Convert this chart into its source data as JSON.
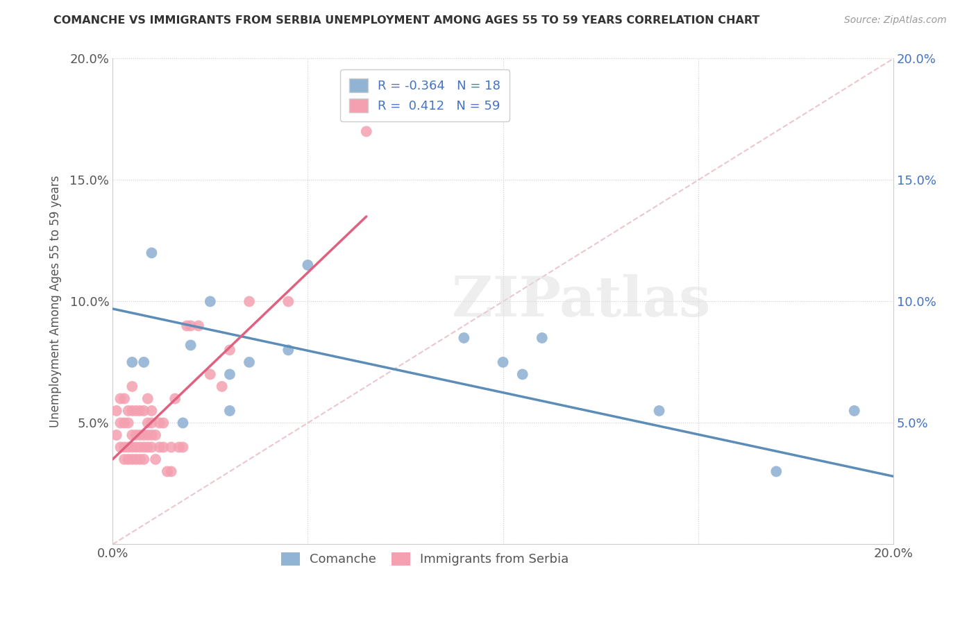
{
  "title": "COMANCHE VS IMMIGRANTS FROM SERBIA UNEMPLOYMENT AMONG AGES 55 TO 59 YEARS CORRELATION CHART",
  "source": "Source: ZipAtlas.com",
  "ylabel": "Unemployment Among Ages 55 to 59 years",
  "xlim": [
    0.0,
    0.2
  ],
  "ylim": [
    0.0,
    0.2
  ],
  "xticks": [
    0.0,
    0.05,
    0.1,
    0.15,
    0.2
  ],
  "yticks": [
    0.0,
    0.05,
    0.1,
    0.15,
    0.2
  ],
  "comanche_R": -0.364,
  "comanche_N": 18,
  "serbia_R": 0.412,
  "serbia_N": 59,
  "comanche_color": "#92b4d4",
  "serbia_color": "#f4a0b0",
  "trendline_comanche_color": "#5b8db8",
  "trendline_serbia_color": "#e06080",
  "identity_line_color": "#e8b8c0",
  "watermark_text": "ZIPatlas",
  "background_color": "#ffffff",
  "comanche_x": [
    0.008,
    0.01,
    0.018,
    0.02,
    0.025,
    0.03,
    0.03,
    0.035,
    0.045,
    0.05,
    0.09,
    0.1,
    0.105,
    0.11,
    0.14,
    0.17,
    0.19,
    0.005
  ],
  "comanche_y": [
    0.075,
    0.12,
    0.05,
    0.082,
    0.1,
    0.07,
    0.055,
    0.075,
    0.08,
    0.115,
    0.085,
    0.075,
    0.07,
    0.085,
    0.055,
    0.03,
    0.055,
    0.075
  ],
  "serbia_x": [
    0.001,
    0.001,
    0.002,
    0.002,
    0.002,
    0.003,
    0.003,
    0.003,
    0.003,
    0.004,
    0.004,
    0.004,
    0.004,
    0.005,
    0.005,
    0.005,
    0.005,
    0.005,
    0.006,
    0.006,
    0.006,
    0.006,
    0.007,
    0.007,
    0.007,
    0.007,
    0.008,
    0.008,
    0.008,
    0.008,
    0.009,
    0.009,
    0.009,
    0.009,
    0.01,
    0.01,
    0.01,
    0.01,
    0.011,
    0.011,
    0.012,
    0.012,
    0.013,
    0.013,
    0.014,
    0.015,
    0.015,
    0.016,
    0.017,
    0.018,
    0.019,
    0.02,
    0.022,
    0.025,
    0.028,
    0.03,
    0.035,
    0.045,
    0.065
  ],
  "serbia_y": [
    0.045,
    0.055,
    0.04,
    0.05,
    0.06,
    0.035,
    0.04,
    0.05,
    0.06,
    0.035,
    0.04,
    0.05,
    0.055,
    0.035,
    0.04,
    0.045,
    0.055,
    0.065,
    0.035,
    0.04,
    0.045,
    0.055,
    0.035,
    0.04,
    0.045,
    0.055,
    0.035,
    0.04,
    0.045,
    0.055,
    0.04,
    0.045,
    0.05,
    0.06,
    0.04,
    0.045,
    0.05,
    0.055,
    0.035,
    0.045,
    0.04,
    0.05,
    0.04,
    0.05,
    0.03,
    0.03,
    0.04,
    0.06,
    0.04,
    0.04,
    0.09,
    0.09,
    0.09,
    0.07,
    0.065,
    0.08,
    0.1,
    0.1,
    0.17
  ],
  "comanche_trendline_x0": 0.0,
  "comanche_trendline_y0": 0.097,
  "comanche_trendline_x1": 0.2,
  "comanche_trendline_y1": 0.028,
  "serbia_trendline_x0": 0.0,
  "serbia_trendline_y0": 0.035,
  "serbia_trendline_x1": 0.065,
  "serbia_trendline_y1": 0.135
}
